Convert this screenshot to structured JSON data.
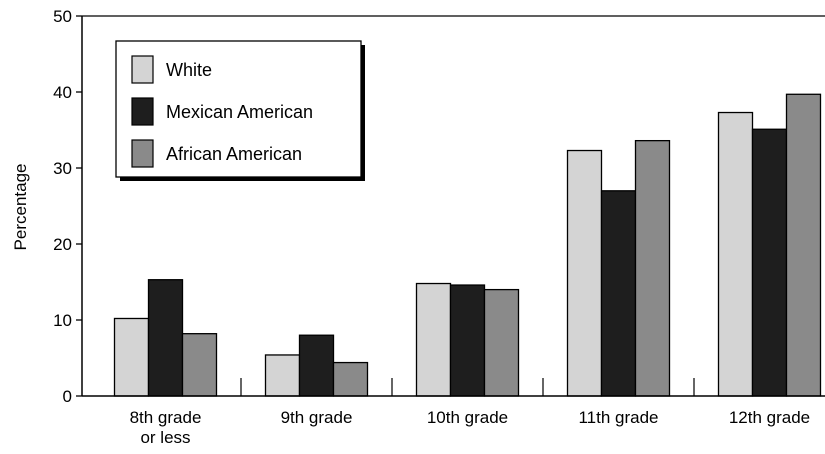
{
  "chart_data": {
    "type": "bar",
    "categories": [
      [
        "8th grade",
        "or less"
      ],
      [
        "9th grade"
      ],
      [
        "10th grade"
      ],
      [
        "11th grade"
      ],
      [
        "12th grade"
      ]
    ],
    "series": [
      {
        "name": "White",
        "color": "#d4d4d4",
        "values": [
          10.2,
          5.4,
          14.8,
          32.3,
          37.3
        ]
      },
      {
        "name": "Mexican American",
        "color": "#1e1e1e",
        "values": [
          15.3,
          8.0,
          14.6,
          27.0,
          35.1
        ]
      },
      {
        "name": "African American",
        "color": "#8a8a8a",
        "values": [
          8.2,
          4.4,
          14.0,
          33.6,
          39.7
        ]
      }
    ],
    "title": "",
    "xlabel": "",
    "ylabel": "Percentage",
    "ylim": [
      0,
      50
    ],
    "yticks": [
      0,
      10,
      20,
      30,
      40,
      50
    ],
    "legend_position": "top-left",
    "grid": false
  }
}
